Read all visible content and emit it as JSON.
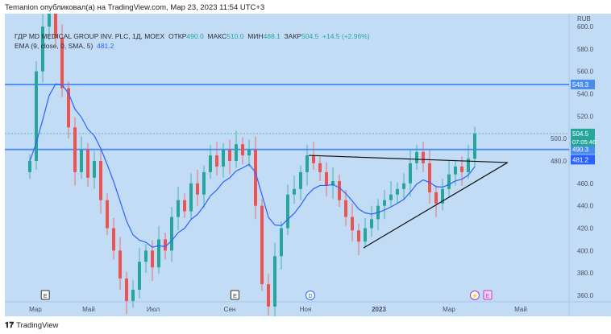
{
  "published": "Temanion опубликовал(а) на TradingView.com, Мар 23, 2023 11:54 UTC+3",
  "legend": {
    "symbol": "ГДР MD MEDICAL GROUP INV. PLC, 1Д, MOEX",
    "open_label": "ОТКР",
    "open": "490.0",
    "high_label": "МАКС",
    "high": "510.0",
    "low_label": "МИН",
    "low": "488.1",
    "close_label": "ЗАКР",
    "close": "504.5",
    "change": "+14.5 (+2.96%)",
    "ema_label": "EMA (9, close, 0, SMA, 5)",
    "ema_value": "481.2"
  },
  "footer": {
    "logo": "TradingView"
  },
  "colors": {
    "bg": "#c3dcf6",
    "up": "#26a69a",
    "down": "#ef5350",
    "ema": "#2962ff",
    "hline": "#4a8df0"
  },
  "chart_data": {
    "type": "candlestick",
    "currency": "RUB",
    "ylim": [
      360,
      600
    ],
    "y_ticks": [
      "600.0",
      "580.0",
      "560.0",
      "540.0",
      "520.0",
      "500.0",
      "480.0",
      "460.0",
      "440.0",
      "420.0",
      "400.0",
      "380.0",
      "360.0"
    ],
    "x_ticks": [
      "Мар",
      "Май",
      "Июл",
      "Сен",
      "Ноя",
      "2023",
      "Мар",
      "Май"
    ],
    "closes": [
      480,
      560,
      600,
      625,
      590,
      545,
      510,
      470,
      490,
      465,
      480,
      445,
      420,
      400,
      375,
      355,
      365,
      390,
      400,
      385,
      410,
      400,
      430,
      445,
      435,
      460,
      450,
      470,
      485,
      475,
      490,
      480,
      495,
      485,
      490,
      440,
      370,
      350,
      395,
      420,
      450,
      455,
      470,
      485,
      478,
      470,
      458,
      462,
      445,
      430,
      418,
      408,
      420,
      428,
      440,
      445,
      450,
      455,
      460,
      478,
      488,
      478,
      452,
      442,
      455,
      468,
      475,
      470,
      482,
      504.5
    ],
    "ema_period": 9,
    "hlines": [
      {
        "price": 548.3,
        "label": "548.3"
      },
      {
        "price": 490.3,
        "label": "490.3"
      }
    ],
    "last_price": {
      "label": "504.5",
      "countdown": "07:05:46"
    },
    "ema_label": "481.2",
    "trendlines": [
      {
        "from": [
          43.25,
          485
        ],
        "to": [
          74.1,
          478.6
        ]
      },
      {
        "from": [
          51.75,
          402.4
        ],
        "to": [
          74.1,
          478.6
        ]
      }
    ],
    "events": [
      {
        "idx": 2.4,
        "label": "E",
        "kind": "earnings"
      },
      {
        "idx": 31.8,
        "label": "E",
        "kind": "earnings"
      },
      {
        "idx": 43.5,
        "label": "D",
        "kind": "dividend"
      },
      {
        "idx": 69,
        "label": "⚡",
        "kind": "split"
      },
      {
        "idx": 71,
        "label": "E",
        "kind": "earnings-next"
      }
    ]
  }
}
